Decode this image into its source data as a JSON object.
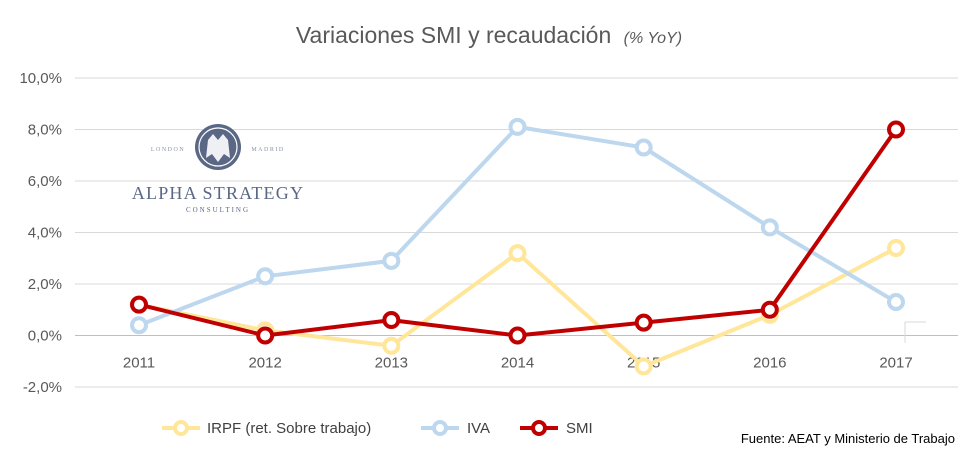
{
  "colors": {
    "irpf": "#ffe699",
    "iva": "#bdd7ee",
    "smi": "#c00000",
    "grid": "#d9d9d9",
    "text": "#595959",
    "logo": "#5a6785"
  },
  "logo": {
    "left_small": "LONDON",
    "right_small": "MADRID",
    "name": "ALPHA STRATEGY",
    "sub": "CONSULTING"
  },
  "source": "Fuente: AEAT y Ministerio de Trabajo",
  "chart_data": {
    "type": "line",
    "title": "Variaciones SMI y recaudación",
    "subtitle": "(% YoY)",
    "xlabel": "",
    "ylabel": "",
    "categories": [
      "2011",
      "2012",
      "2013",
      "2014",
      "2015",
      "2016",
      "2017"
    ],
    "ylim": [
      -2,
      10
    ],
    "yticks": [
      -2,
      0,
      2,
      4,
      6,
      8,
      10
    ],
    "ytick_labels": [
      "-2,0%",
      "0,0%",
      "2,0%",
      "4,0%",
      "6,0%",
      "8,0%",
      "10,0%"
    ],
    "grid": true,
    "legend_position": "bottom",
    "series": [
      {
        "name": "IRPF (ret. Sobre trabajo)",
        "key": "irpf",
        "values": [
          1.2,
          0.2,
          -0.4,
          3.2,
          -1.2,
          0.8,
          3.4
        ]
      },
      {
        "name": "IVA",
        "key": "iva",
        "values": [
          0.4,
          2.3,
          2.9,
          8.1,
          7.3,
          4.2,
          1.3
        ]
      },
      {
        "name": "SMI",
        "key": "smi",
        "values": [
          1.2,
          0.0,
          0.6,
          0.0,
          0.5,
          1.0,
          8.0
        ]
      }
    ]
  }
}
